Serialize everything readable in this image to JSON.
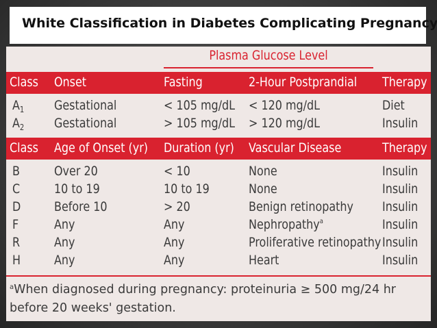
{
  "title": "White Classification in Diabetes Complicating Pregnancy",
  "plasma_header": "Plasma Glucose Level",
  "header1": [
    "Class",
    "Onset",
    "Fasting",
    "2-Hour Postprandial",
    "Therapy"
  ],
  "rows1": [
    {
      "class_letter": "A",
      "class_sub": "1",
      "onset": "Gestational",
      "fasting": "< 105 mg/dL",
      "postprandial": "< 120 mg/dL",
      "therapy": "Diet"
    },
    {
      "class_letter": "A",
      "class_sub": "2",
      "onset": "Gestational",
      "fasting": "> 105 mg/dL",
      "postprandial": "> 120 mg/dL",
      "therapy": "Insulin"
    }
  ],
  "header2": [
    "Class",
    "Age of Onset (yr)",
    "Duration (yr)",
    "Vascular Disease",
    "Therapy"
  ],
  "rows2": [
    {
      "class": "B",
      "age": "Over 20",
      "duration": "< 10",
      "vascular": "None",
      "vascular_sup": "",
      "therapy": "Insulin"
    },
    {
      "class": "C",
      "age": "10 to 19",
      "duration": "10 to 19",
      "vascular": "None",
      "vascular_sup": "",
      "therapy": "Insulin"
    },
    {
      "class": "D",
      "age": "Before 10",
      "duration": "> 20",
      "vascular": "Benign retinopathy",
      "vascular_sup": "",
      "therapy": "Insulin"
    },
    {
      "class": "F",
      "age": "Any",
      "duration": "Any",
      "vascular": "Nephropathy",
      "vascular_sup": "a",
      "therapy": "Insulin"
    },
    {
      "class": "R",
      "age": "Any",
      "duration": "Any",
      "vascular": "Proliferative retinopathy",
      "vascular_sup": "",
      "therapy": "Insulin"
    },
    {
      "class": "H",
      "age": "Any",
      "duration": "Any",
      "vascular": "Heart",
      "vascular_sup": "",
      "therapy": "Insulin"
    }
  ],
  "footnote_sup": "a",
  "footnote": "When diagnosed during pregnancy: proteinuria ≥ 500 mg/24 hr before 20 weeks' gestation."
}
